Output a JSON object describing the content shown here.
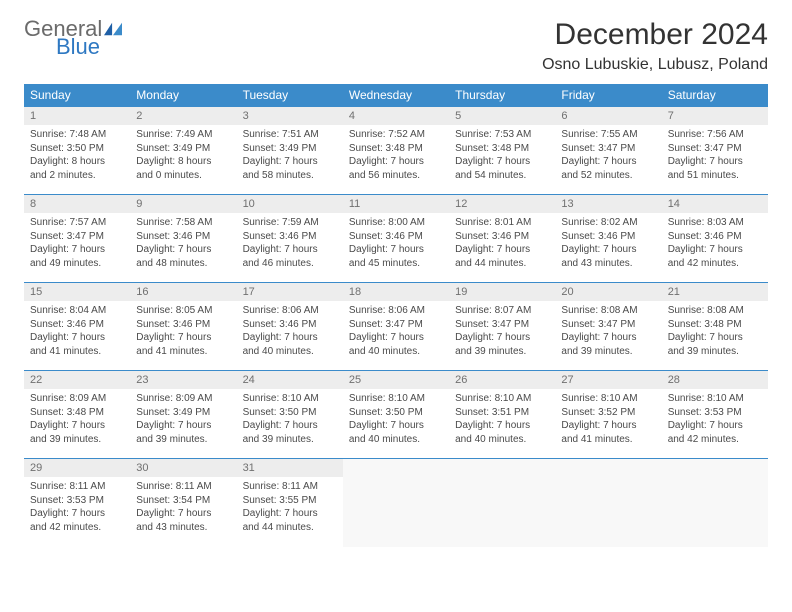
{
  "logo": {
    "word1": "General",
    "word2": "Blue",
    "color_gray": "#6b6b6b",
    "color_blue": "#2e78c2"
  },
  "title": "December 2024",
  "location": "Osno Lubuskie, Lubusz, Poland",
  "colors": {
    "header_bg": "#3b8bca",
    "header_text": "#ffffff",
    "daynum_bg": "#ededed",
    "daynum_text": "#707070",
    "body_text": "#4a4a4a",
    "rule": "#3b8bca",
    "page_bg": "#ffffff"
  },
  "typography": {
    "title_fontsize": 30,
    "location_fontsize": 16,
    "th_fontsize": 12,
    "daynum_fontsize": 11,
    "body_fontsize": 10
  },
  "weekdays": [
    "Sunday",
    "Monday",
    "Tuesday",
    "Wednesday",
    "Thursday",
    "Friday",
    "Saturday"
  ],
  "weeks": [
    [
      {
        "n": "1",
        "sr": "Sunrise: 7:48 AM",
        "ss": "Sunset: 3:50 PM",
        "dl": "Daylight: 8 hours and 2 minutes."
      },
      {
        "n": "2",
        "sr": "Sunrise: 7:49 AM",
        "ss": "Sunset: 3:49 PM",
        "dl": "Daylight: 8 hours and 0 minutes."
      },
      {
        "n": "3",
        "sr": "Sunrise: 7:51 AM",
        "ss": "Sunset: 3:49 PM",
        "dl": "Daylight: 7 hours and 58 minutes."
      },
      {
        "n": "4",
        "sr": "Sunrise: 7:52 AM",
        "ss": "Sunset: 3:48 PM",
        "dl": "Daylight: 7 hours and 56 minutes."
      },
      {
        "n": "5",
        "sr": "Sunrise: 7:53 AM",
        "ss": "Sunset: 3:48 PM",
        "dl": "Daylight: 7 hours and 54 minutes."
      },
      {
        "n": "6",
        "sr": "Sunrise: 7:55 AM",
        "ss": "Sunset: 3:47 PM",
        "dl": "Daylight: 7 hours and 52 minutes."
      },
      {
        "n": "7",
        "sr": "Sunrise: 7:56 AM",
        "ss": "Sunset: 3:47 PM",
        "dl": "Daylight: 7 hours and 51 minutes."
      }
    ],
    [
      {
        "n": "8",
        "sr": "Sunrise: 7:57 AM",
        "ss": "Sunset: 3:47 PM",
        "dl": "Daylight: 7 hours and 49 minutes."
      },
      {
        "n": "9",
        "sr": "Sunrise: 7:58 AM",
        "ss": "Sunset: 3:46 PM",
        "dl": "Daylight: 7 hours and 48 minutes."
      },
      {
        "n": "10",
        "sr": "Sunrise: 7:59 AM",
        "ss": "Sunset: 3:46 PM",
        "dl": "Daylight: 7 hours and 46 minutes."
      },
      {
        "n": "11",
        "sr": "Sunrise: 8:00 AM",
        "ss": "Sunset: 3:46 PM",
        "dl": "Daylight: 7 hours and 45 minutes."
      },
      {
        "n": "12",
        "sr": "Sunrise: 8:01 AM",
        "ss": "Sunset: 3:46 PM",
        "dl": "Daylight: 7 hours and 44 minutes."
      },
      {
        "n": "13",
        "sr": "Sunrise: 8:02 AM",
        "ss": "Sunset: 3:46 PM",
        "dl": "Daylight: 7 hours and 43 minutes."
      },
      {
        "n": "14",
        "sr": "Sunrise: 8:03 AM",
        "ss": "Sunset: 3:46 PM",
        "dl": "Daylight: 7 hours and 42 minutes."
      }
    ],
    [
      {
        "n": "15",
        "sr": "Sunrise: 8:04 AM",
        "ss": "Sunset: 3:46 PM",
        "dl": "Daylight: 7 hours and 41 minutes."
      },
      {
        "n": "16",
        "sr": "Sunrise: 8:05 AM",
        "ss": "Sunset: 3:46 PM",
        "dl": "Daylight: 7 hours and 41 minutes."
      },
      {
        "n": "17",
        "sr": "Sunrise: 8:06 AM",
        "ss": "Sunset: 3:46 PM",
        "dl": "Daylight: 7 hours and 40 minutes."
      },
      {
        "n": "18",
        "sr": "Sunrise: 8:06 AM",
        "ss": "Sunset: 3:47 PM",
        "dl": "Daylight: 7 hours and 40 minutes."
      },
      {
        "n": "19",
        "sr": "Sunrise: 8:07 AM",
        "ss": "Sunset: 3:47 PM",
        "dl": "Daylight: 7 hours and 39 minutes."
      },
      {
        "n": "20",
        "sr": "Sunrise: 8:08 AM",
        "ss": "Sunset: 3:47 PM",
        "dl": "Daylight: 7 hours and 39 minutes."
      },
      {
        "n": "21",
        "sr": "Sunrise: 8:08 AM",
        "ss": "Sunset: 3:48 PM",
        "dl": "Daylight: 7 hours and 39 minutes."
      }
    ],
    [
      {
        "n": "22",
        "sr": "Sunrise: 8:09 AM",
        "ss": "Sunset: 3:48 PM",
        "dl": "Daylight: 7 hours and 39 minutes."
      },
      {
        "n": "23",
        "sr": "Sunrise: 8:09 AM",
        "ss": "Sunset: 3:49 PM",
        "dl": "Daylight: 7 hours and 39 minutes."
      },
      {
        "n": "24",
        "sr": "Sunrise: 8:10 AM",
        "ss": "Sunset: 3:50 PM",
        "dl": "Daylight: 7 hours and 39 minutes."
      },
      {
        "n": "25",
        "sr": "Sunrise: 8:10 AM",
        "ss": "Sunset: 3:50 PM",
        "dl": "Daylight: 7 hours and 40 minutes."
      },
      {
        "n": "26",
        "sr": "Sunrise: 8:10 AM",
        "ss": "Sunset: 3:51 PM",
        "dl": "Daylight: 7 hours and 40 minutes."
      },
      {
        "n": "27",
        "sr": "Sunrise: 8:10 AM",
        "ss": "Sunset: 3:52 PM",
        "dl": "Daylight: 7 hours and 41 minutes."
      },
      {
        "n": "28",
        "sr": "Sunrise: 8:10 AM",
        "ss": "Sunset: 3:53 PM",
        "dl": "Daylight: 7 hours and 42 minutes."
      }
    ],
    [
      {
        "n": "29",
        "sr": "Sunrise: 8:11 AM",
        "ss": "Sunset: 3:53 PM",
        "dl": "Daylight: 7 hours and 42 minutes."
      },
      {
        "n": "30",
        "sr": "Sunrise: 8:11 AM",
        "ss": "Sunset: 3:54 PM",
        "dl": "Daylight: 7 hours and 43 minutes."
      },
      {
        "n": "31",
        "sr": "Sunrise: 8:11 AM",
        "ss": "Sunset: 3:55 PM",
        "dl": "Daylight: 7 hours and 44 minutes."
      },
      null,
      null,
      null,
      null
    ]
  ]
}
